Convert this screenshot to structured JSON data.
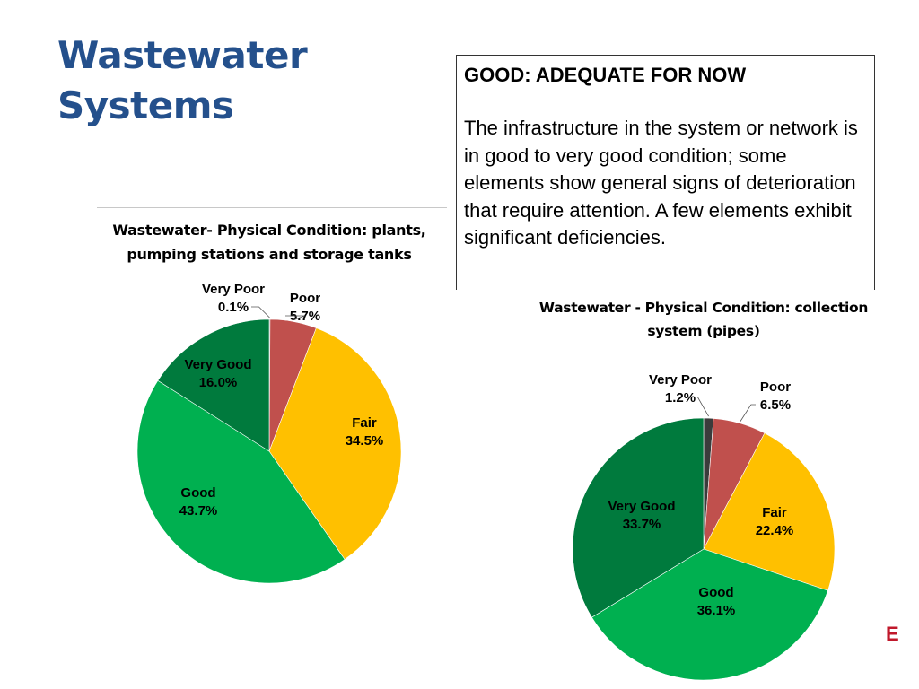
{
  "slide": {
    "title_line1": "Wastewater",
    "title_line2": "Systems"
  },
  "definition": {
    "heading": "GOOD: ADEQUATE FOR NOW",
    "body": "The infrastructure in the system or network is in good to very good condition; some elements show general signs of deterioration that require attention. A few elements exhibit significant deficiencies."
  },
  "corner_mark": "E",
  "colors": {
    "very_poor": "#3b3b3b",
    "poor": "#c0504d",
    "fair": "#ffc000",
    "good": "#00b050",
    "very_good": "#007a3d"
  },
  "chart_data": [
    {
      "type": "pie",
      "title": "Wastewater- Physical Condition: plants, pumping stations and storage tanks",
      "slices": [
        {
          "name": "Very Poor",
          "value": 0.1,
          "label": "0.1%"
        },
        {
          "name": "Poor",
          "value": 5.7,
          "label": "5.7%"
        },
        {
          "name": "Fair",
          "value": 34.5,
          "label": "34.5%"
        },
        {
          "name": "Good",
          "value": 43.7,
          "label": "43.7%"
        },
        {
          "name": "Very Good",
          "value": 16.0,
          "label": "16.0%"
        }
      ],
      "start": "12 o'clock, clockwise"
    },
    {
      "type": "pie",
      "title": "Wastewater - Physical Condition: collection system (pipes)",
      "slices": [
        {
          "name": "Very Poor",
          "value": 1.2,
          "label": "1.2%"
        },
        {
          "name": "Poor",
          "value": 6.5,
          "label": "6.5%"
        },
        {
          "name": "Fair",
          "value": 22.4,
          "label": "22.4%"
        },
        {
          "name": "Good",
          "value": 36.1,
          "label": "36.1%"
        },
        {
          "name": "Very Good",
          "value": 33.7,
          "label": "33.7%"
        }
      ],
      "start": "12 o'clock, clockwise"
    }
  ]
}
